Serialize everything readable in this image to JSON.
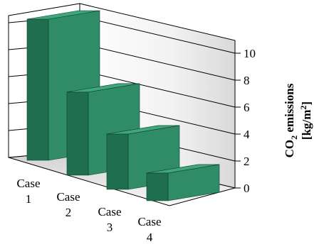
{
  "chart_data": {
    "type": "bar",
    "style": "3d",
    "categories": [
      [
        "Case",
        "1"
      ],
      [
        "Case",
        "2"
      ],
      [
        "Case",
        "3"
      ],
      [
        "Case",
        "4"
      ]
    ],
    "values": [
      10.7,
      6.3,
      4.2,
      2.1
    ],
    "ylabel": {
      "main": "CO",
      "sub": "2",
      "rest": " emissions",
      "line2": "[kg/m",
      "sup": "2",
      "end": "]"
    },
    "ylim": [
      0,
      10
    ],
    "yticks": [
      "0",
      "2",
      "4",
      "6",
      "8",
      "10"
    ],
    "grid": true,
    "bar_colors": {
      "front": "#2f8c67",
      "side": "#1f6e4f",
      "top": "#3fa77c"
    }
  }
}
